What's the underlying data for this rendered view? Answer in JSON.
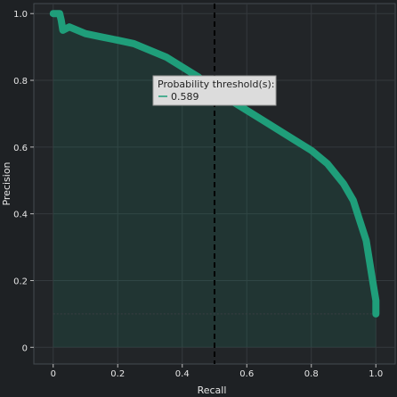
{
  "chart_data": {
    "type": "area",
    "xlabel": "Recall",
    "ylabel": "Precision",
    "xlim": [
      -0.06,
      1.06
    ],
    "ylim": [
      -0.05,
      1.03
    ],
    "xticks": [
      "0",
      "0.2",
      "0.4",
      "0.6",
      "0.8",
      "1.0"
    ],
    "xtick_values": [
      0,
      0.2,
      0.4,
      0.6,
      0.8,
      1.0
    ],
    "yticks": [
      "0",
      "0.2",
      "0.4",
      "0.6",
      "0.8",
      "1.0"
    ],
    "ytick_values": [
      0,
      0.2,
      0.4,
      0.6,
      0.8,
      1.0
    ],
    "grid": true,
    "series": [
      {
        "x": [
          0.0,
          0.02,
          0.025,
          0.03,
          0.05,
          0.1,
          0.15,
          0.2,
          0.25,
          0.3,
          0.35,
          0.4,
          0.45,
          0.5,
          0.55,
          0.6,
          0.65,
          0.7,
          0.75,
          0.8,
          0.85,
          0.9,
          0.93,
          0.95,
          0.97,
          0.98,
          0.99,
          1.0,
          1.0
        ],
        "y": [
          1.0,
          1.0,
          0.98,
          0.95,
          0.96,
          0.94,
          0.93,
          0.92,
          0.91,
          0.89,
          0.87,
          0.84,
          0.81,
          0.77,
          0.74,
          0.71,
          0.68,
          0.65,
          0.62,
          0.59,
          0.55,
          0.49,
          0.44,
          0.38,
          0.32,
          0.26,
          0.2,
          0.14,
          0.1
        ],
        "color": "#1f9e7a"
      }
    ],
    "baseline": 0.1,
    "threshold_marker_x": 0.5,
    "tooltip": {
      "title": "Probability threshold(s):",
      "value": "0.589"
    }
  }
}
